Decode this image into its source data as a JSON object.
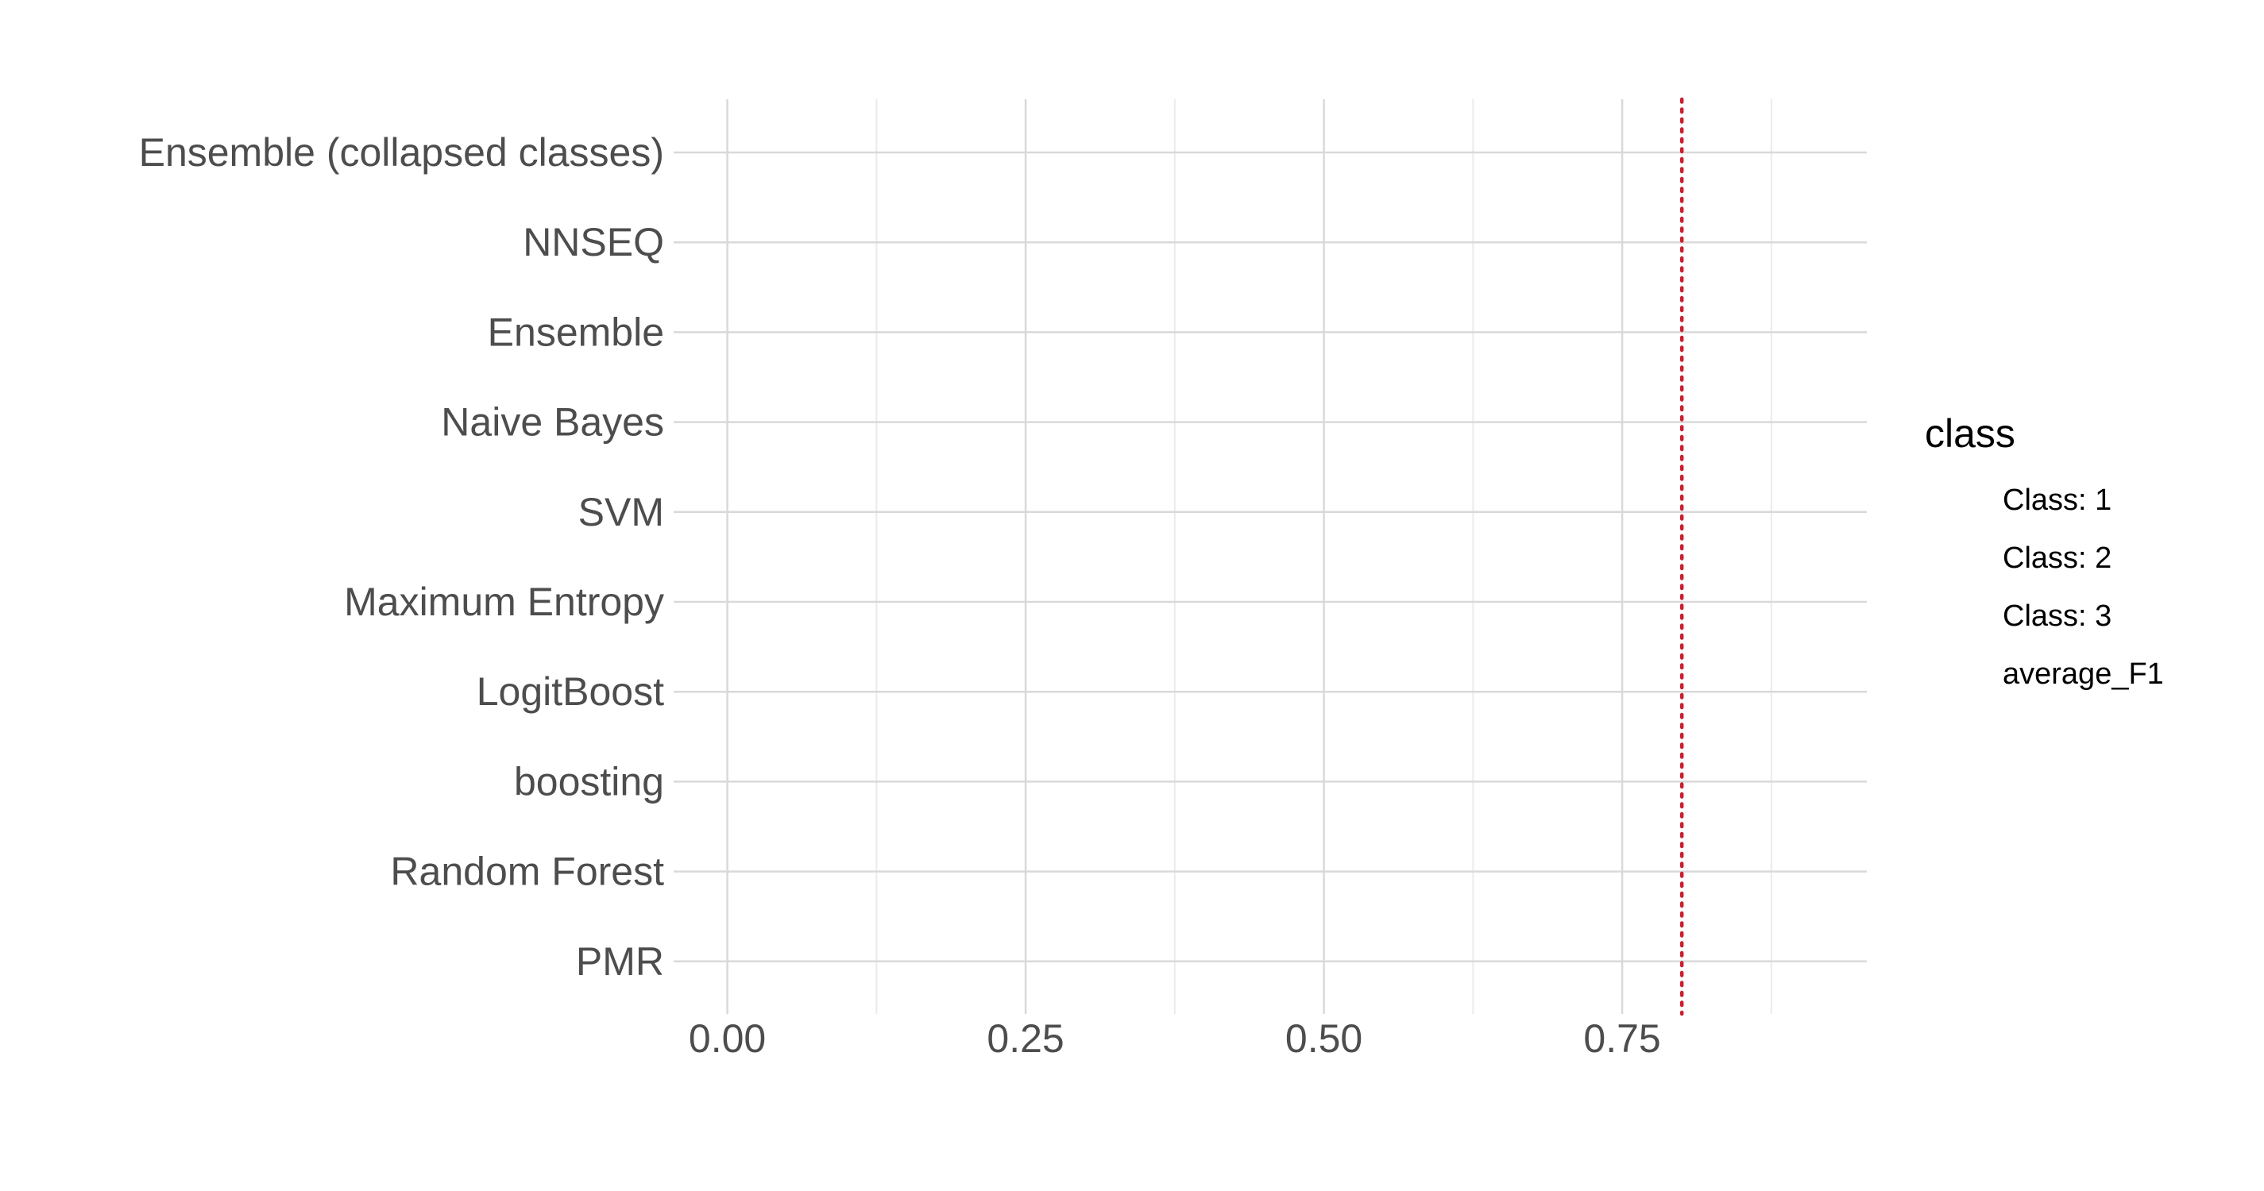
{
  "chart_data": {
    "type": "bar",
    "orientation": "horizontal",
    "categories": [
      "Ensemble (collapsed classes)",
      "NNSEQ",
      "Ensemble",
      "Naive Bayes",
      "SVM",
      "Maximum Entropy",
      "LogitBoost",
      "boosting",
      "Random Forest",
      "PMR"
    ],
    "x_ticks": [
      0.0,
      0.25,
      0.5,
      0.75
    ],
    "x_tick_labels": [
      "0.00",
      "0.25",
      "0.50",
      "0.75"
    ],
    "xlim": [
      -0.045,
      0.955
    ],
    "reference_line": {
      "value": 0.8,
      "style": "dotted",
      "color": "#cc1f2e"
    },
    "legend": {
      "title": "class",
      "position": "right",
      "entries": [
        "Class: 1",
        "Class: 2",
        "Class: 3",
        "average_F1"
      ]
    },
    "series": [],
    "title": "",
    "xlabel": "",
    "ylabel": "",
    "grid": true
  },
  "colors": {
    "background": "#ffffff",
    "grid_major": "#d9d9d9",
    "grid_minor": "#ebebeb",
    "tick_text": "#4d4d4d",
    "legend_text": "#000000",
    "reference_line": "#cc1f2e"
  }
}
